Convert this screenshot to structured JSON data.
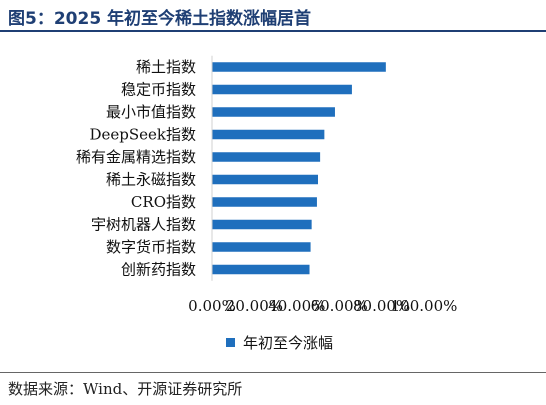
{
  "title": "图5：2025 年初至今稀土指数涨幅居首",
  "source": "数据来源：Wind、开源证券研究所",
  "colors": {
    "bar": "#1f6fbd",
    "title": "#1f3f74"
  },
  "chart_data": {
    "type": "bar",
    "orientation": "horizontal",
    "categories": [
      "稀土指数",
      "稳定币指数",
      "最小市值指数",
      "DeepSeek指数",
      "稀有金属精选指数",
      "稀土永磁指数",
      "CRO指数",
      "宇树机器人指数",
      "数字货币指数",
      "创新药指数"
    ],
    "series": [
      {
        "name": "年初至今涨幅",
        "values": [
          82,
          66,
          58,
          53,
          51,
          50,
          49.5,
          47,
          46.5,
          46
        ]
      }
    ],
    "x_ticks": [
      "0.00%",
      "20.00%",
      "40.00%",
      "60.00%",
      "80.00%",
      "100.00%"
    ],
    "xlim": [
      0,
      100
    ],
    "legend_position": "bottom",
    "grid": false
  }
}
